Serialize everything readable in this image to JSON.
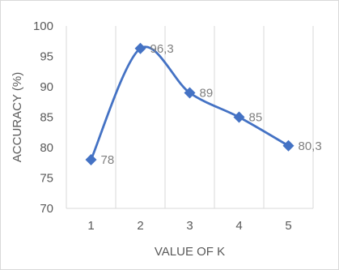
{
  "chart_data": {
    "type": "line",
    "x": [
      1,
      2,
      3,
      4,
      5
    ],
    "series": [
      {
        "values": [
          78,
          96.3,
          89,
          85,
          80.3
        ]
      }
    ],
    "data_labels": [
      "78",
      "96,3",
      "89",
      "85",
      "80,3"
    ],
    "xlabel": "VALUE OF K",
    "ylabel": "ACCURACY (%)",
    "ylim": [
      70,
      100
    ],
    "yticks": [
      70,
      75,
      80,
      85,
      90,
      95,
      100
    ],
    "xticks": [
      "1",
      "2",
      "3",
      "4",
      "5"
    ],
    "grid": "vertical",
    "smoothed": true,
    "marker": "diamond",
    "line_color": "#4472c4",
    "grid_color": "#d9d9d9",
    "text_color": "#595959",
    "label_color": "#7f7f7f"
  }
}
